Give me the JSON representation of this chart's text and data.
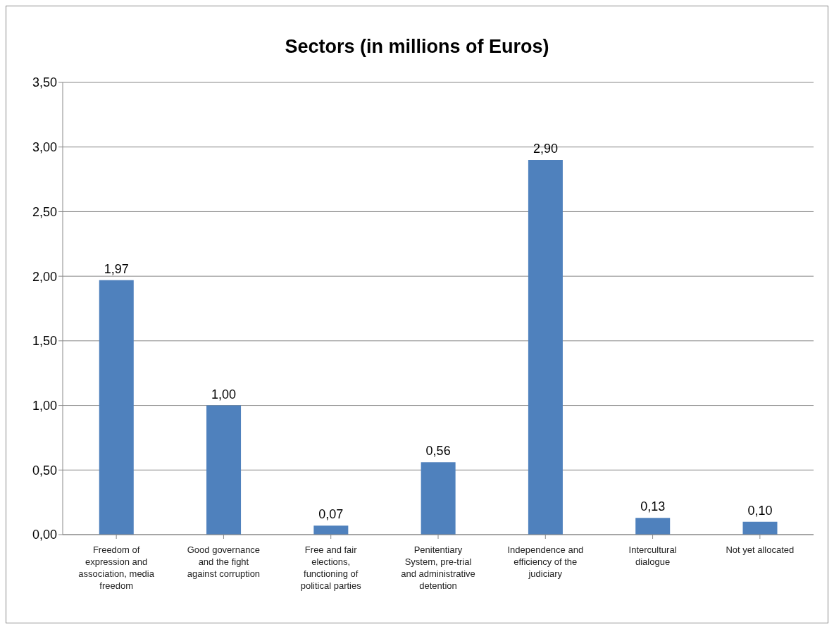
{
  "chart_data": {
    "type": "bar",
    "title": "Sectors (in millions of Euros)",
    "categories": [
      "Freedom of expression and association, media freedom",
      "Good governance and the fight against corruption",
      "Free and fair elections, functioning of political parties",
      "Penitentiary System, pre-trial and administrative detention",
      "Independence and efficiency of the judiciary",
      "Intercultural dialogue",
      "Not yet allocated"
    ],
    "values": [
      1.97,
      1.0,
      0.07,
      0.56,
      2.9,
      0.13,
      0.1
    ],
    "value_labels": [
      "1,97",
      "1,00",
      "0,07",
      "0,56",
      "2,90",
      "0,13",
      "0,10"
    ],
    "color": "#4f81bd",
    "ylim": [
      0,
      3.5
    ],
    "yticks": [
      {
        "value": 0,
        "label": "0,00"
      },
      {
        "value": 0.5,
        "label": "0,50"
      },
      {
        "value": 1,
        "label": "1,00"
      },
      {
        "value": 1.5,
        "label": "1,50"
      },
      {
        "value": 2,
        "label": "2,00"
      },
      {
        "value": 2.5,
        "label": "2,50"
      },
      {
        "value": 3,
        "label": "3,00"
      },
      {
        "value": 3.5,
        "label": "3,50"
      }
    ],
    "grid": "y",
    "legend": false
  }
}
